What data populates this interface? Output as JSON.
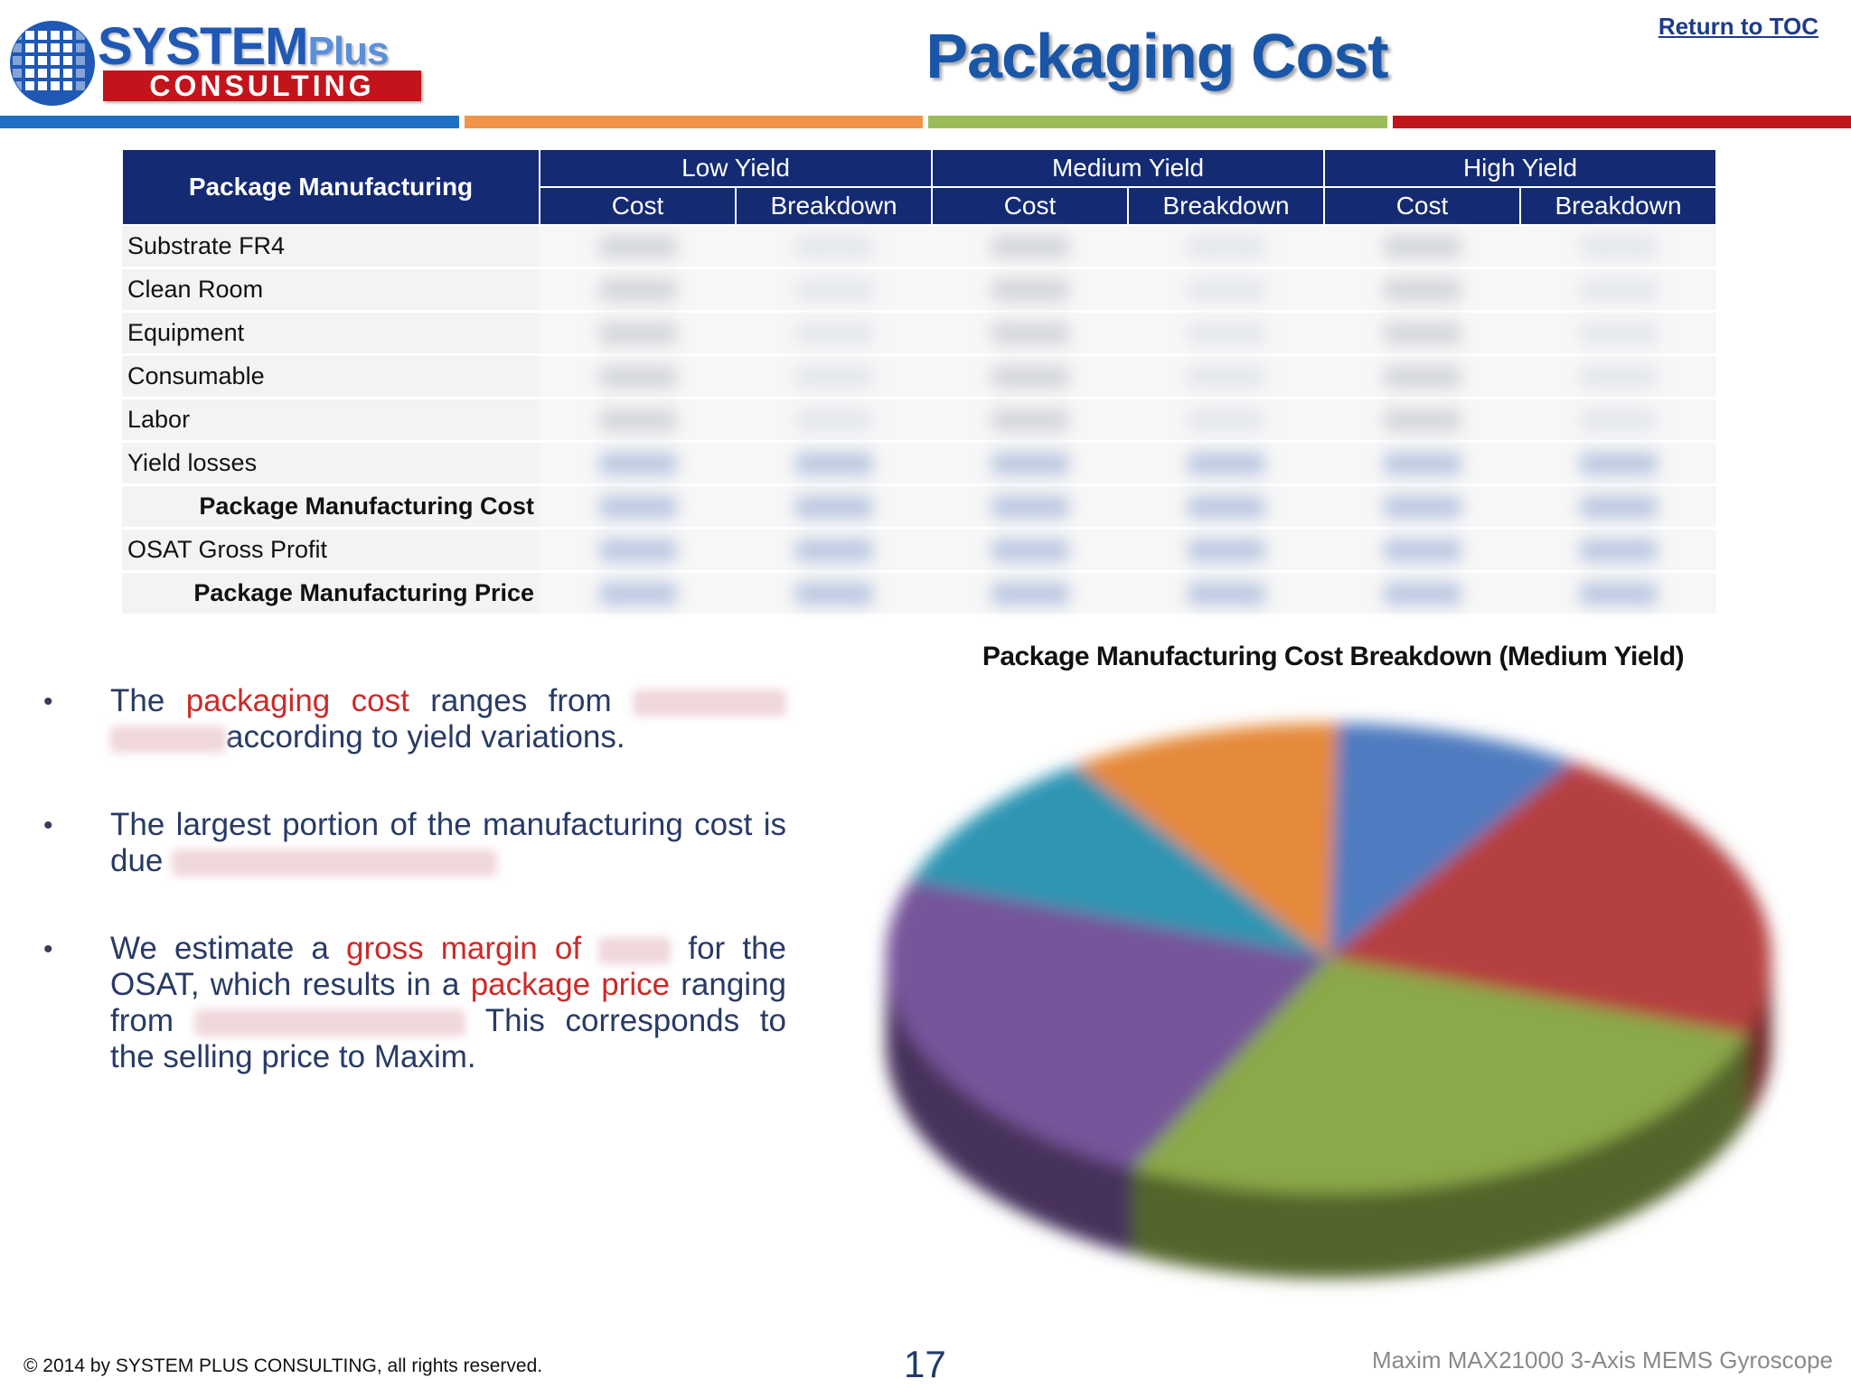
{
  "header": {
    "logo_line1": "SYSTEM",
    "logo_line1_suffix": "Plus",
    "logo_line2": "CONSULTING",
    "title": "Packaging Cost",
    "toc_link": "Return to TOC"
  },
  "colors": {
    "navy": "#142a73",
    "title_blue": "#1a56a8",
    "accent_red": "#cc2a28",
    "stripes": [
      "#1f6fc4",
      "#f0944a",
      "#9bbb59",
      "#c0151c"
    ]
  },
  "table": {
    "corner_header": "Package Manufacturing",
    "groups": [
      "Low Yield",
      "Medium Yield",
      "High Yield"
    ],
    "subheaders": [
      "Cost",
      "Breakdown",
      "Cost",
      "Breakdown",
      "Cost",
      "Breakdown"
    ],
    "rows": [
      {
        "label": "Substrate FR4",
        "bold": false
      },
      {
        "label": "Clean Room",
        "bold": false
      },
      {
        "label": "Equipment",
        "bold": false
      },
      {
        "label": "Consumable",
        "bold": false
      },
      {
        "label": "Labor",
        "bold": false
      },
      {
        "label": "Yield losses",
        "bold": false
      },
      {
        "label": "Package Manufacturing Cost",
        "bold": true
      },
      {
        "label": "OSAT Gross Profit",
        "bold": false
      },
      {
        "label": "Package Manufacturing Price",
        "bold": true
      }
    ]
  },
  "bullets": {
    "b1": {
      "p1": "The ",
      "red1": "packaging cost",
      "p2": " ranges from ",
      "p3": "according to yield variations."
    },
    "b2": {
      "p1": "The largest portion of the manufacturing cost is due"
    },
    "b3": {
      "p1": "We estimate a ",
      "red1": "gross margin of",
      "p2": " for the OSAT, which results in a ",
      "red2": "package price",
      "p3": " ranging from",
      "p4": " This corresponds to the selling price to Maxim."
    }
  },
  "chart_data": {
    "type": "pie",
    "title": "Package Manufacturing Cost Breakdown (Medium Yield)",
    "slices": [
      {
        "value": 9,
        "color": "#4f7cc0"
      },
      {
        "value": 21,
        "color": "#b5413f"
      },
      {
        "value": 27,
        "color": "#8aa94a"
      },
      {
        "value": 23,
        "color": "#76559a"
      },
      {
        "value": 10,
        "color": "#2f95b2"
      },
      {
        "value": 10,
        "color": "#e5893a"
      }
    ]
  },
  "footer": {
    "copyright": "© 2014 by SYSTEM PLUS CONSULTING, all rights reserved.",
    "page_number": "17",
    "right_text": "Maxim MAX21000 3-Axis MEMS Gyroscope"
  }
}
